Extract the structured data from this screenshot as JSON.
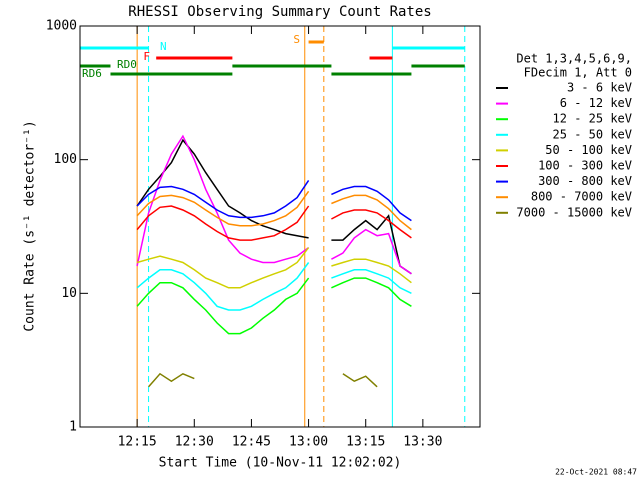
{
  "chart_data": {
    "type": "line",
    "title": "RHESSI Observing Summary Count Rates",
    "x_label": "Start Time (10-Nov-11 12:02:02)",
    "y_label": "Count Rate (s⁻¹ detector⁻¹)",
    "footer": "22-Oct-2021 08:47",
    "legend_header": [
      "Det 1,3,4,5,6,9,",
      "FDecim 1, Att 0"
    ],
    "log_y": true,
    "xlim": [
      "12:00",
      "13:45"
    ],
    "xticks": [
      "12:15",
      "12:30",
      "12:45",
      "13:00",
      "13:15",
      "13:30"
    ],
    "ylim": [
      1,
      1000
    ],
    "yticks": [
      1,
      10,
      100,
      1000
    ],
    "x": [
      "12:15",
      "12:18",
      "12:21",
      "12:24",
      "12:27",
      "12:30",
      "12:33",
      "12:36",
      "12:39",
      "12:42",
      "12:45",
      "12:48",
      "12:51",
      "12:54",
      "12:57",
      "13:00",
      "13:03",
      "13:06",
      "13:09",
      "13:12",
      "13:15",
      "13:18",
      "13:21",
      "13:24",
      "13:27"
    ],
    "series": [
      {
        "name": "3 - 6 keV",
        "color": "#000000",
        "values": [
          45,
          60,
          75,
          95,
          140,
          110,
          80,
          60,
          45,
          40,
          35,
          32,
          30,
          28,
          27,
          26,
          null,
          25,
          25,
          30,
          35,
          30,
          38,
          16,
          14
        ]
      },
      {
        "name": "6 - 12 keV",
        "color": "#ff00ff",
        "values": [
          16,
          40,
          70,
          110,
          150,
          100,
          60,
          40,
          25,
          20,
          18,
          17,
          17,
          18,
          19,
          22,
          null,
          18,
          20,
          26,
          30,
          27,
          28,
          16,
          14
        ]
      },
      {
        "name": "12 - 25 keV",
        "color": "#00ff00",
        "values": [
          8,
          10,
          12,
          12,
          11,
          9,
          7.5,
          6,
          5,
          5,
          5.5,
          6.5,
          7.5,
          9,
          10,
          13,
          null,
          11,
          12,
          13,
          13,
          12,
          11,
          9,
          8
        ]
      },
      {
        "name": "25 - 50 keV",
        "color": "#00ffff",
        "values": [
          11,
          13,
          15,
          15,
          14,
          12,
          10,
          8,
          7.5,
          7.5,
          8,
          9,
          10,
          11,
          13,
          17,
          null,
          13,
          14,
          15,
          15,
          14,
          13,
          11,
          10
        ]
      },
      {
        "name": "50 - 100 keV",
        "color": "#d0d000",
        "values": [
          17,
          18,
          19,
          18,
          17,
          15,
          13,
          12,
          11,
          11,
          12,
          13,
          14,
          15,
          17,
          22,
          null,
          16,
          17,
          18,
          18,
          17,
          16,
          14,
          12
        ]
      },
      {
        "name": "100 - 300 keV",
        "color": "#ff0000",
        "values": [
          30,
          38,
          44,
          45,
          42,
          38,
          33,
          29,
          26,
          25,
          25,
          26,
          27,
          30,
          34,
          45,
          null,
          36,
          40,
          42,
          42,
          40,
          35,
          30,
          26
        ]
      },
      {
        "name": "300 - 800 keV",
        "color": "#0000ff",
        "values": [
          45,
          55,
          62,
          63,
          60,
          55,
          48,
          42,
          38,
          37,
          37,
          38,
          40,
          45,
          52,
          70,
          null,
          55,
          60,
          63,
          63,
          58,
          50,
          40,
          35
        ]
      },
      {
        "name": "800 - 7000 keV",
        "color": "#ff8c00",
        "values": [
          38,
          47,
          53,
          54,
          52,
          48,
          42,
          37,
          33,
          32,
          32,
          33,
          35,
          38,
          44,
          58,
          null,
          47,
          51,
          54,
          54,
          50,
          43,
          35,
          30
        ]
      },
      {
        "name": "7000 - 15000 keV",
        "color": "#808000",
        "values": [
          null,
          2,
          2.5,
          2.2,
          2.5,
          2.3,
          null,
          null,
          null,
          null,
          null,
          null,
          null,
          null,
          null,
          null,
          null,
          null,
          2.5,
          2.2,
          2.4,
          2,
          null,
          null,
          null
        ]
      }
    ],
    "flags": [
      {
        "label": "N",
        "color": "#00ffff",
        "spans": [
          [
            "12:00",
            "12:18"
          ],
          [
            "13:22",
            "13:41"
          ]
        ]
      },
      {
        "label": "F",
        "color": "#ff0000",
        "spans": [
          [
            "12:20",
            "12:40"
          ],
          [
            "13:16",
            "13:22"
          ]
        ]
      },
      {
        "label": "RD0",
        "color": "#008000",
        "spans": [
          [
            "12:00",
            "12:08"
          ],
          [
            "12:40",
            "13:06"
          ],
          [
            "13:27",
            "13:41"
          ]
        ]
      },
      {
        "label": "RD6",
        "color": "#008000",
        "spans": [
          [
            "12:08",
            "12:40"
          ],
          [
            "13:06",
            "13:27"
          ]
        ]
      },
      {
        "label": "S",
        "color": "#ff8c00",
        "spans": [
          [
            "13:00",
            "13:04"
          ]
        ]
      }
    ],
    "vlines": [
      {
        "x": "12:00",
        "color": "#00ffff",
        "dashed": false
      },
      {
        "x": "12:18",
        "color": "#00ffff",
        "dashed": true
      },
      {
        "x": "13:22",
        "color": "#00ffff",
        "dashed": false
      },
      {
        "x": "13:41",
        "color": "#00ffff",
        "dashed": true
      },
      {
        "x": "12:15",
        "color": "#ff8c00",
        "dashed": false
      },
      {
        "x": "12:59",
        "color": "#ff8c00",
        "dashed": false
      },
      {
        "x": "13:04",
        "color": "#ff8c00",
        "dashed": true
      }
    ]
  }
}
